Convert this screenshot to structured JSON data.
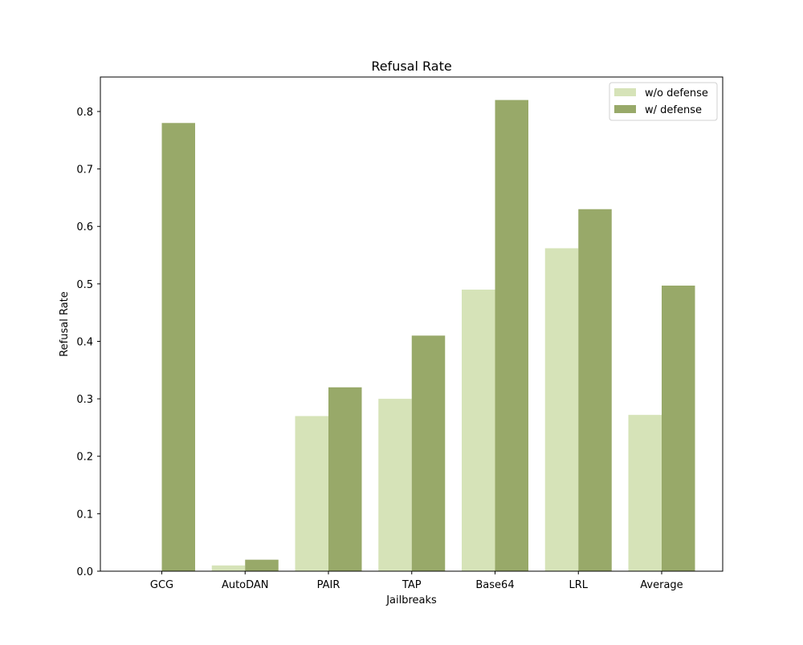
{
  "chart_data": {
    "type": "bar",
    "title": "Refusal Rate",
    "xlabel": "Jailbreaks",
    "ylabel": "Refusal Rate",
    "categories": [
      "GCG",
      "AutoDAN",
      "PAIR",
      "TAP",
      "Base64",
      "LRL",
      "Average"
    ],
    "series": [
      {
        "name": "w/o defense",
        "color": "#d6e3b8",
        "values": [
          0.0,
          0.01,
          0.27,
          0.3,
          0.49,
          0.562,
          0.272
        ]
      },
      {
        "name": "w/ defense",
        "color": "#98a969",
        "values": [
          0.78,
          0.02,
          0.32,
          0.41,
          0.82,
          0.63,
          0.497
        ]
      }
    ],
    "ylim": [
      0,
      0.86
    ],
    "yticks": [
      "0.0",
      "0.1",
      "0.2",
      "0.3",
      "0.4",
      "0.5",
      "0.6",
      "0.7",
      "0.8"
    ],
    "grid": false,
    "legend_position": "top-right"
  }
}
